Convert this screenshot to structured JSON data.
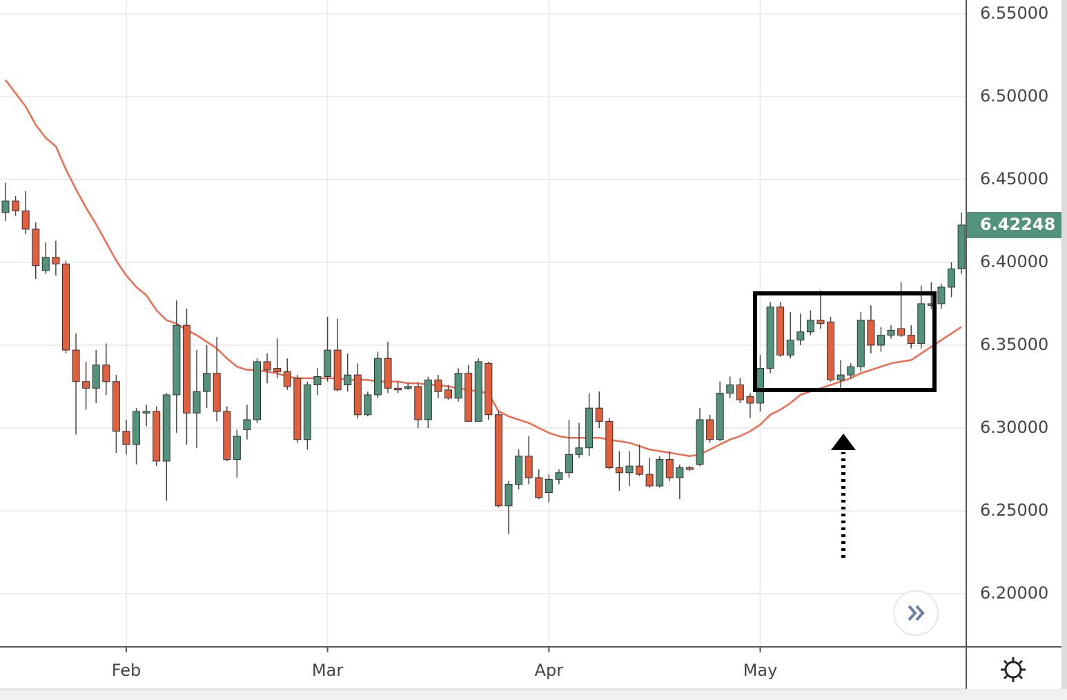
{
  "chart_data": {
    "type": "candlestick",
    "categories": [
      null,
      null,
      null,
      null,
      null,
      null,
      null,
      null,
      null,
      null,
      null,
      null,
      "Feb",
      null,
      null,
      null,
      null,
      null,
      null,
      null,
      null,
      null,
      null,
      null,
      null,
      null,
      null,
      null,
      null,
      null,
      null,
      null,
      "Mar",
      null,
      null,
      null,
      null,
      null,
      null,
      null,
      null,
      null,
      null,
      null,
      null,
      null,
      null,
      null,
      null,
      null,
      null,
      null,
      null,
      null,
      "Apr",
      null,
      null,
      null,
      null,
      null,
      null,
      null,
      null,
      null,
      null,
      null,
      null,
      null,
      null,
      null,
      null,
      null,
      null,
      null,
      null,
      "May",
      null,
      null,
      null,
      null,
      null,
      null,
      null,
      null,
      null,
      null,
      null,
      null,
      null,
      null,
      null,
      null,
      null,
      null,
      null,
      null
    ],
    "open": [
      6.43,
      6.437,
      6.431,
      6.42,
      6.395,
      6.403,
      6.399,
      6.347,
      6.328,
      6.324,
      6.338,
      6.328,
      6.298,
      6.29,
      6.309,
      6.31,
      6.28,
      6.32,
      6.362,
      6.309,
      6.322,
      6.333,
      6.31,
      6.281,
      6.299,
      6.305,
      6.34,
      6.336,
      6.334,
      6.33,
      6.293,
      6.326,
      6.331,
      6.347,
      6.326,
      6.332,
      6.308,
      6.32,
      6.342,
      6.324,
      6.324,
      6.325,
      6.305,
      6.329,
      6.323,
      6.318,
      6.333,
      6.304,
      6.339,
      6.308,
      6.253,
      6.266,
      6.283,
      6.27,
      6.261,
      6.269,
      6.273,
      6.284,
      6.288,
      6.312,
      6.304,
      6.276,
      6.273,
      6.277,
      6.272,
      6.265,
      6.281,
      6.27,
      6.276,
      6.278,
      6.305,
      6.293,
      6.321,
      6.326,
      6.319,
      6.315,
      6.336,
      6.373,
      6.344,
      6.353,
      6.358,
      6.365,
      6.364,
      6.329,
      6.332,
      6.337,
      6.365,
      6.35,
      6.356,
      6.36,
      6.356,
      6.351,
      6.374,
      6.375,
      6.385,
      6.396
    ],
    "high": [
      6.448,
      6.44,
      6.443,
      6.424,
      6.412,
      6.413,
      6.401,
      6.357,
      6.34,
      6.347,
      6.351,
      6.332,
      6.305,
      6.312,
      6.314,
      6.313,
      6.321,
      6.377,
      6.372,
      6.347,
      6.35,
      6.355,
      6.313,
      6.299,
      6.314,
      6.342,
      6.345,
      6.354,
      6.342,
      6.332,
      6.328,
      6.336,
      6.367,
      6.366,
      6.345,
      6.339,
      6.322,
      6.346,
      6.352,
      6.328,
      6.327,
      6.327,
      6.331,
      6.332,
      6.326,
      6.336,
      6.338,
      6.342,
      6.34,
      6.31,
      6.268,
      6.287,
      6.295,
      6.275,
      6.272,
      6.275,
      6.305,
      6.303,
      6.321,
      6.322,
      6.306,
      6.286,
      6.286,
      6.29,
      6.282,
      6.283,
      6.286,
      6.278,
      6.277,
      6.312,
      6.308,
      6.328,
      6.331,
      6.33,
      6.321,
      6.344,
      6.376,
      6.376,
      6.37,
      6.369,
      6.371,
      6.383,
      6.367,
      6.341,
      6.339,
      6.37,
      6.374,
      6.361,
      6.362,
      6.388,
      6.362,
      6.386,
      6.388,
      6.387,
      6.4,
      6.43
    ],
    "low": [
      6.425,
      6.428,
      6.417,
      6.39,
      6.393,
      6.392,
      6.345,
      6.296,
      6.311,
      6.315,
      6.32,
      6.285,
      6.284,
      6.278,
      6.301,
      6.277,
      6.256,
      6.297,
      6.29,
      6.288,
      6.312,
      6.304,
      6.28,
      6.27,
      6.293,
      6.303,
      6.327,
      6.33,
      6.323,
      6.291,
      6.287,
      6.32,
      6.328,
      6.322,
      6.322,
      6.306,
      6.307,
      6.318,
      6.321,
      6.321,
      6.323,
      6.3,
      6.3,
      6.318,
      6.317,
      6.316,
      6.304,
      6.304,
      6.305,
      6.252,
      6.236,
      6.263,
      6.266,
      6.257,
      6.255,
      6.266,
      6.27,
      6.282,
      6.283,
      6.3,
      6.275,
      6.262,
      6.265,
      6.271,
      6.264,
      6.264,
      6.268,
      6.257,
      6.274,
      6.277,
      6.291,
      6.292,
      6.318,
      6.315,
      6.306,
      6.31,
      6.333,
      6.343,
      6.342,
      6.35,
      6.356,
      6.36,
      6.328,
      6.322,
      6.33,
      6.334,
      6.345,
      6.346,
      6.354,
      6.355,
      6.348,
      6.348,
      6.372,
      6.372,
      6.379,
      6.393
    ],
    "close": [
      6.437,
      6.431,
      6.42,
      6.398,
      6.403,
      6.399,
      6.347,
      6.328,
      6.324,
      6.338,
      6.328,
      6.298,
      6.29,
      6.31,
      6.31,
      6.28,
      6.32,
      6.362,
      6.309,
      6.322,
      6.333,
      6.31,
      6.281,
      6.295,
      6.305,
      6.34,
      6.335,
      6.334,
      6.325,
      6.293,
      6.326,
      6.331,
      6.347,
      6.323,
      6.332,
      6.308,
      6.32,
      6.342,
      6.324,
      6.323,
      6.325,
      6.305,
      6.329,
      6.322,
      6.318,
      6.333,
      6.304,
      6.34,
      6.308,
      6.253,
      6.266,
      6.283,
      6.27,
      6.258,
      6.269,
      6.273,
      6.284,
      6.288,
      6.312,
      6.304,
      6.276,
      6.273,
      6.277,
      6.272,
      6.265,
      6.281,
      6.27,
      6.276,
      6.275,
      6.305,
      6.293,
      6.321,
      6.326,
      6.317,
      6.315,
      6.336,
      6.373,
      6.344,
      6.353,
      6.358,
      6.365,
      6.363,
      6.329,
      6.332,
      6.337,
      6.365,
      6.35,
      6.356,
      6.359,
      6.356,
      6.351,
      6.375,
      6.375,
      6.385,
      6.396,
      6.42248
    ],
    "up_color": "#53927b",
    "down_color": "#e0603e",
    "ma": {
      "color": "#f2694d",
      "values": [
        6.51,
        6.502,
        6.494,
        6.483,
        6.475,
        6.47,
        6.456,
        6.444,
        6.433,
        6.423,
        6.412,
        6.401,
        6.392,
        6.385,
        6.38,
        6.371,
        6.365,
        6.363,
        6.359,
        6.356,
        6.352,
        6.348,
        6.342,
        6.337,
        6.335,
        6.335,
        6.334,
        6.333,
        6.331,
        6.33,
        6.33,
        6.33,
        6.33,
        6.33,
        6.329,
        6.329,
        6.329,
        6.328,
        6.328,
        6.328,
        6.327,
        6.327,
        6.326,
        6.326,
        6.325,
        6.324,
        6.323,
        6.322,
        6.321,
        6.31,
        6.307,
        6.305,
        6.303,
        6.3,
        6.297,
        6.295,
        6.294,
        6.294,
        6.294,
        6.294,
        6.293,
        6.292,
        6.291,
        6.289,
        6.287,
        6.286,
        6.285,
        6.284,
        6.283,
        6.284,
        6.287,
        6.29,
        6.293,
        6.295,
        6.298,
        6.302,
        6.308,
        6.311,
        6.315,
        6.32,
        6.322,
        6.324,
        6.326,
        6.328,
        6.33,
        6.333,
        6.335,
        6.337,
        6.339,
        6.34,
        6.341,
        6.345,
        6.349,
        6.353,
        6.357,
        6.361
      ]
    },
    "ylim": [
      6.1679,
      6.5583
    ],
    "yticks": [
      {
        "value": 6.2,
        "label": "6.20000"
      },
      {
        "value": 6.25,
        "label": "6.25000"
      },
      {
        "value": 6.3,
        "label": "6.30000"
      },
      {
        "value": 6.35,
        "label": "6.35000"
      },
      {
        "value": 6.4,
        "label": "6.40000"
      },
      {
        "value": 6.45,
        "label": "6.45000"
      },
      {
        "value": 6.5,
        "label": "6.50000"
      },
      {
        "value": 6.55,
        "label": "6.55000"
      }
    ],
    "grid": true
  }
}
